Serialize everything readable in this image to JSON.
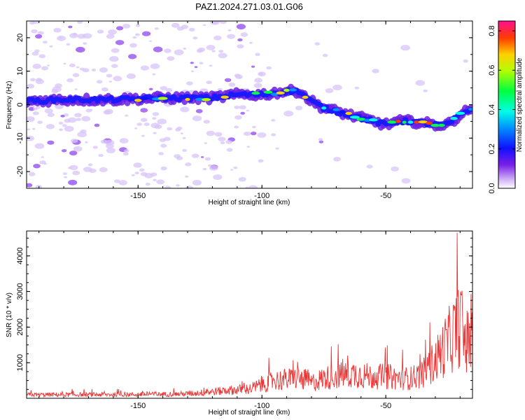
{
  "title": "PAZ1.2024.271.03.01.G06",
  "chart_data": [
    {
      "type": "heatmap",
      "xlabel": "Height of straight line (km)",
      "ylabel": "Frequency (Hz)",
      "xlim": [
        -195,
        -15
      ],
      "ylim": [
        -25,
        25
      ],
      "x_ticks": [
        -150,
        -100,
        -50
      ],
      "y_ticks": [
        -20,
        -10,
        0,
        10,
        20
      ],
      "ridge": {
        "x": [
          -195,
          -180,
          -160,
          -140,
          -120,
          -110,
          -100,
          -95,
          -90,
          -85,
          -80,
          -75,
          -70,
          -65,
          -60,
          -55,
          -50,
          -45,
          -40,
          -35,
          -30,
          -25,
          -20,
          -15
        ],
        "frequency": [
          1,
          1.5,
          1.5,
          2,
          2,
          3,
          3,
          3.5,
          4,
          4,
          1,
          -1,
          -2,
          -3,
          -4,
          -5,
          -6,
          -5,
          -5,
          -5.5,
          -6,
          -6,
          -3,
          -1
        ]
      },
      "colorbar": {
        "label": "Normalized spectral amplitude",
        "range": [
          0,
          0.85
        ],
        "ticks": [
          "0.0",
          "0.2",
          "0.4",
          "0.6",
          "0.8"
        ]
      }
    },
    {
      "type": "line",
      "xlabel": "Height of straight line (km)",
      "ylabel": "SNR (10 * v/v)",
      "xlim": [
        -195,
        -15
      ],
      "ylim": [
        0,
        4700
      ],
      "x_ticks": [
        -150,
        -100,
        -50
      ],
      "y_ticks": [
        1000,
        2000,
        3000,
        4000
      ],
      "color": "#ee3333",
      "envelope": {
        "x": [
          -195,
          -150,
          -130,
          -120,
          -105,
          -100,
          -95,
          -85,
          -80,
          -75,
          -70,
          -62,
          -55,
          -50,
          -45,
          -40,
          -35,
          -30,
          -25,
          -22,
          -20,
          -18,
          -15
        ],
        "snr": [
          160,
          170,
          200,
          300,
          420,
          600,
          800,
          900,
          700,
          900,
          1000,
          1100,
          950,
          1000,
          900,
          900,
          1100,
          1700,
          2500,
          3000,
          3400,
          2600,
          2400
        ]
      }
    }
  ]
}
